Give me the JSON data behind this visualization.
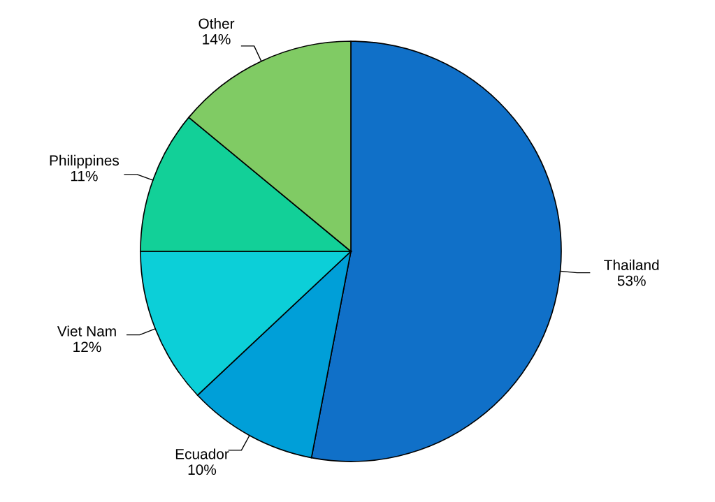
{
  "chart_data": {
    "type": "pie",
    "categories": [
      "Thailand",
      "Ecuador",
      "Viet Nam",
      "Philippines",
      "Other"
    ],
    "values": [
      53,
      10,
      12,
      11,
      14
    ],
    "colors": [
      "#1070c8",
      "#009fd8",
      "#0ccfd8",
      "#12d098",
      "#80cb64"
    ],
    "value_labels": [
      "53%",
      "10%",
      "12%",
      "11%",
      "14%"
    ]
  }
}
